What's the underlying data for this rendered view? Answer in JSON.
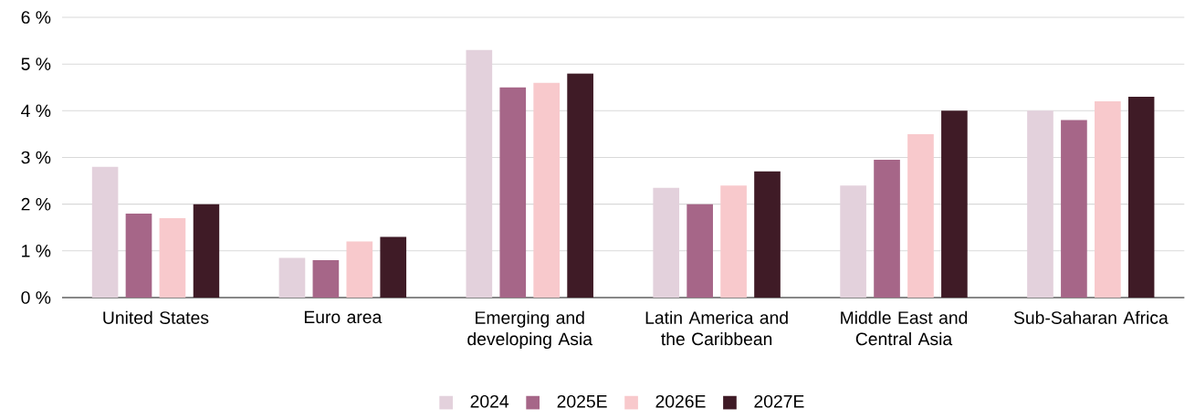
{
  "chart_data": {
    "type": "bar",
    "categories": [
      "United States",
      "Euro area",
      "Emerging and developing Asia",
      "Latin America and the Caribbean",
      "Middle East and Central Asia",
      "Sub-Saharan Africa"
    ],
    "series": [
      {
        "name": "2024",
        "color": "#e3d1dc",
        "values": [
          2.8,
          0.85,
          5.3,
          2.35,
          2.4,
          4.0
        ]
      },
      {
        "name": "2025E",
        "color": "#a66688",
        "values": [
          1.8,
          0.8,
          4.5,
          2.0,
          2.95,
          3.8
        ]
      },
      {
        "name": "2026E",
        "color": "#f8c9cc",
        "values": [
          1.7,
          1.2,
          4.6,
          2.4,
          3.5,
          4.2
        ]
      },
      {
        "name": "2027E",
        "color": "#3f1b26",
        "values": [
          2.0,
          1.3,
          4.8,
          2.7,
          4.0,
          4.3
        ]
      }
    ],
    "ylim": [
      0,
      6
    ],
    "yticks": [
      {
        "value": 0,
        "label": "0 %"
      },
      {
        "value": 1,
        "label": "1 %"
      },
      {
        "value": 2,
        "label": "2 %"
      },
      {
        "value": 3,
        "label": "3 %"
      },
      {
        "value": 4,
        "label": "4 %"
      },
      {
        "value": 5,
        "label": "5 %"
      },
      {
        "value": 6,
        "label": "6 %"
      }
    ],
    "grid": "y",
    "legend": "bottom"
  }
}
